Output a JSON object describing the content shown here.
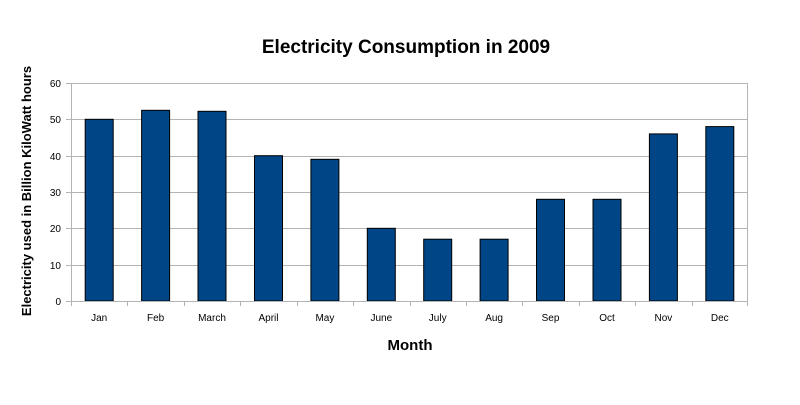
{
  "chart_data": {
    "type": "bar",
    "title": "Electricity Consumption in 2009",
    "xlabel": "Month",
    "ylabel": "Electricity used in Billion KiloWatt hours",
    "categories": [
      "Jan",
      "Feb",
      "March",
      "April",
      "May",
      "June",
      "July",
      "Aug",
      "Sep",
      "Oct",
      "Nov",
      "Dec"
    ],
    "values": [
      50,
      52.5,
      52.2,
      40,
      39,
      20,
      17,
      17,
      28,
      28,
      46,
      48
    ],
    "ylim": [
      0,
      60
    ],
    "yticks": [
      "0",
      "10",
      "20",
      "30",
      "40",
      "50",
      "60"
    ],
    "grid": true,
    "legend": "none",
    "colors": {
      "bar": "#004586",
      "bar_stroke": "#000000",
      "grid": "#b3b3b3",
      "axis": "#b3b3b3"
    }
  }
}
